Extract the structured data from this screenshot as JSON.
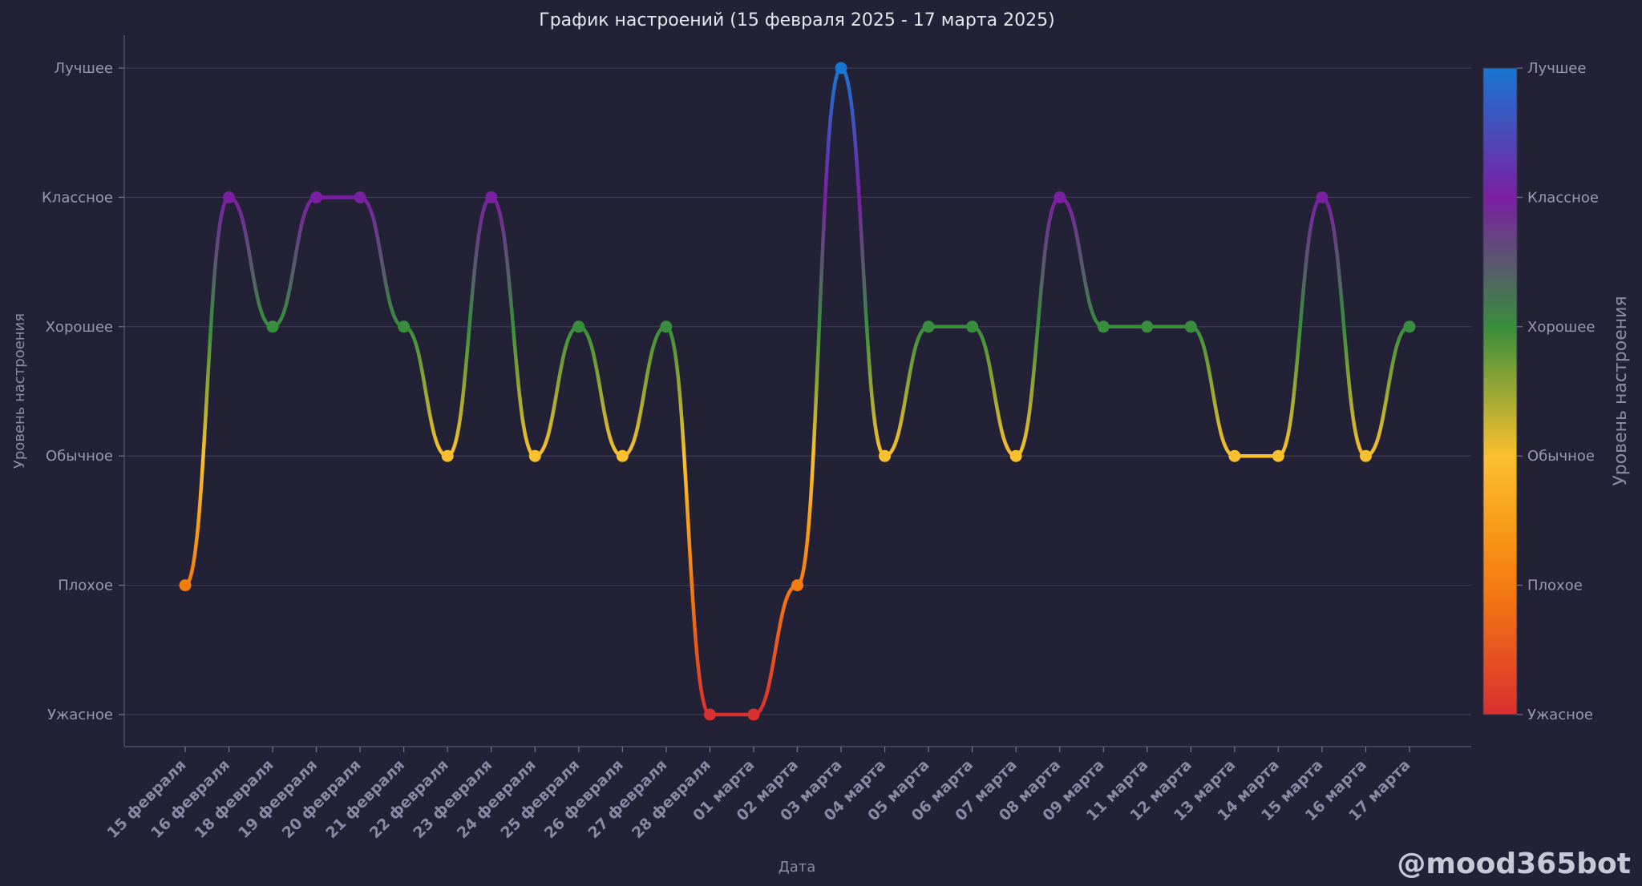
{
  "chart_data": {
    "type": "line",
    "title": "График настроений (15 февраля 2025 - 17 марта 2025)",
    "xlabel": "Дата",
    "ylabel": "Уровень настроения",
    "colorbar_label": "Уровень настроения",
    "levels": [
      "Ужасное",
      "Плохое",
      "Обычное",
      "Хорошее",
      "Классное",
      "Лучшее"
    ],
    "ylim": [
      0,
      5
    ],
    "categories": [
      "15 февраля",
      "16 февраля",
      "18 февраля",
      "19 февраля",
      "20 февраля",
      "21 февраля",
      "22 февраля",
      "23 февраля",
      "24 февраля",
      "25 февраля",
      "26 февраля",
      "27 февраля",
      "28 февраля",
      "01 марта",
      "02 марта",
      "03 марта",
      "04 марта",
      "05 марта",
      "06 марта",
      "07 марта",
      "08 марта",
      "09 марта",
      "11 марта",
      "12 марта",
      "13 марта",
      "14 марта",
      "15 марта",
      "16 марта",
      "17 марта"
    ],
    "values": [
      1,
      4,
      3,
      4,
      4,
      3,
      2,
      4,
      2,
      3,
      2,
      3,
      0,
      0,
      1,
      5,
      2,
      3,
      3,
      2,
      4,
      3,
      3,
      3,
      2,
      2,
      4,
      2,
      3
    ],
    "grid": true,
    "colors": {
      "Ужасное": "#d93030",
      "Плохое": "#f57c0f",
      "Обычное": "#fbc02d",
      "Хорошее": "#388e3c",
      "Классное": "#7b1fa2",
      "Лучшее": "#1976d2"
    }
  },
  "watermark": "@mood365bot"
}
